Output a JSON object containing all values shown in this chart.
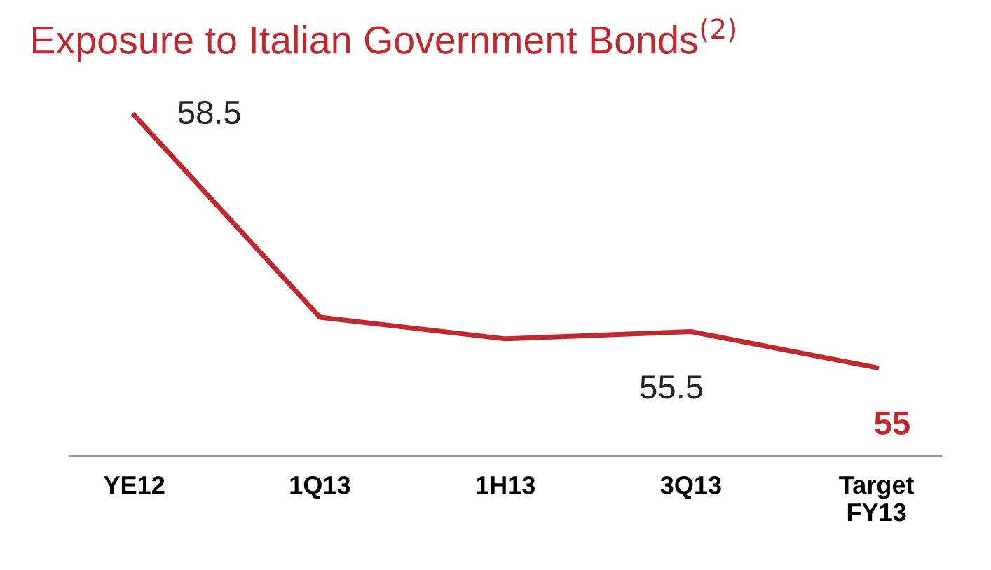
{
  "chart_data": {
    "type": "line",
    "title": "Exposure to Italian Government Bonds$^{(2)}$",
    "categories": [
      "YE12",
      "1Q13",
      "1H13",
      "3Q13",
      "Target\nFY13"
    ],
    "series": [
      {
        "color": "#c0282d",
        "values": [
          58.5,
          55.7,
          55.4,
          55.5,
          55
        ],
        "value_labels": [
          "58.5",
          null,
          null,
          "55.5",
          "55"
        ]
      }
    ],
    "grid": false,
    "legend": false,
    "marker": "none",
    "line_style": "solid"
  }
}
